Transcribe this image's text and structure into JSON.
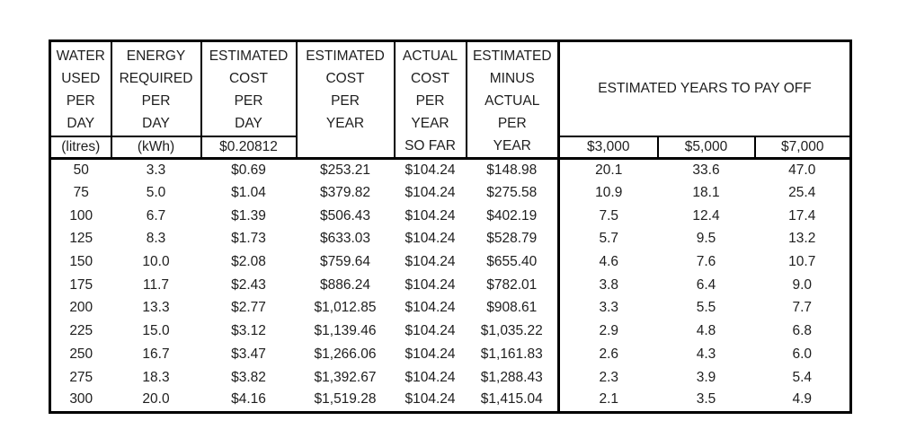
{
  "page": {
    "background": "#ffffff",
    "text_color": "#1e1e1e",
    "border_color": "#000000"
  },
  "table": {
    "header": {
      "water": "WATER\nUSED\nPER\nDAY",
      "water_sub": "(litres)",
      "energy": "ENERGY\nREQUIRED\nPER\nDAY",
      "energy_sub": "(kWh)",
      "est_cost_day": "ESTIMATED\nCOST\nPER\nDAY",
      "est_cost_day_sub": "$0.20812",
      "est_cost_year": "ESTIMATED\nCOST\nPER\nYEAR",
      "actual_cost_year": "ACTUAL\nCOST\nPER\nYEAR\nSO FAR",
      "est_minus_actual": "ESTIMATED\nMINUS\nACTUAL\nPER\nYEAR",
      "payoff_title": "ESTIMATED YEARS TO PAY OFF",
      "payoff_amounts": [
        "$3,000",
        "$5,000",
        "$7,000"
      ]
    },
    "column_names": [
      "water-used-per-day",
      "energy-required-per-day",
      "estimated-cost-per-day",
      "estimated-cost-per-year",
      "actual-cost-per-year-so-far",
      "estimated-minus-actual-per-year",
      "payoff-3000",
      "payoff-5000",
      "payoff-7000"
    ],
    "rows": [
      [
        "50",
        "3.3",
        "$0.69",
        "$253.21",
        "$104.24",
        "$148.98",
        "20.1",
        "33.6",
        "47.0"
      ],
      [
        "75",
        "5.0",
        "$1.04",
        "$379.82",
        "$104.24",
        "$275.58",
        "10.9",
        "18.1",
        "25.4"
      ],
      [
        "100",
        "6.7",
        "$1.39",
        "$506.43",
        "$104.24",
        "$402.19",
        "7.5",
        "12.4",
        "17.4"
      ],
      [
        "125",
        "8.3",
        "$1.73",
        "$633.03",
        "$104.24",
        "$528.79",
        "5.7",
        "9.5",
        "13.2"
      ],
      [
        "150",
        "10.0",
        "$2.08",
        "$759.64",
        "$104.24",
        "$655.40",
        "4.6",
        "7.6",
        "10.7"
      ],
      [
        "175",
        "11.7",
        "$2.43",
        "$886.24",
        "$104.24",
        "$782.01",
        "3.8",
        "6.4",
        "9.0"
      ],
      [
        "200",
        "13.3",
        "$2.77",
        "$1,012.85",
        "$104.24",
        "$908.61",
        "3.3",
        "5.5",
        "7.7"
      ],
      [
        "225",
        "15.0",
        "$3.12",
        "$1,139.46",
        "$104.24",
        "$1,035.22",
        "2.9",
        "4.8",
        "6.8"
      ],
      [
        "250",
        "16.7",
        "$3.47",
        "$1,266.06",
        "$104.24",
        "$1,161.83",
        "2.6",
        "4.3",
        "6.0"
      ],
      [
        "275",
        "18.3",
        "$3.82",
        "$1,392.67",
        "$104.24",
        "$1,288.43",
        "2.3",
        "3.9",
        "5.4"
      ],
      [
        "300",
        "20.0",
        "$4.16",
        "$1,519.28",
        "$104.24",
        "$1,415.04",
        "2.1",
        "3.5",
        "4.9"
      ]
    ]
  }
}
